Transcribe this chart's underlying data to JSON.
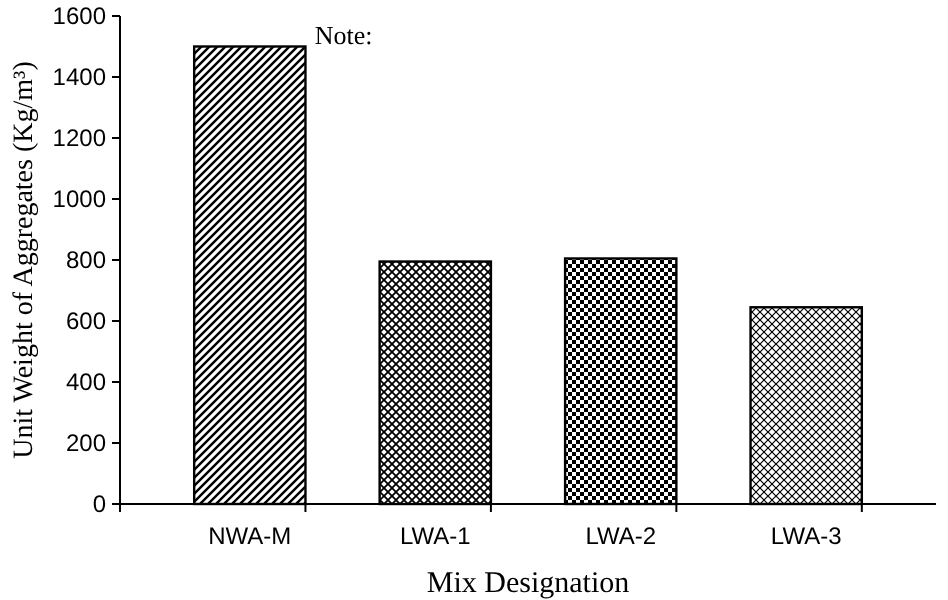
{
  "chart_data": {
    "type": "bar",
    "xlabel": "Mix Designation",
    "ylabel": "Unit Weight of Aggregates  (Kg/m³)",
    "categories": [
      "NWA-M",
      "LWA-1",
      "LWA-2",
      "LWA-3"
    ],
    "values": [
      1500,
      795,
      805,
      645
    ],
    "color": "#000000",
    "ylim": [
      0,
      1600
    ],
    "yticks": [
      0,
      200,
      400,
      600,
      800,
      1000,
      1200,
      1400,
      1600
    ],
    "annotations": [
      "Note:"
    ]
  }
}
